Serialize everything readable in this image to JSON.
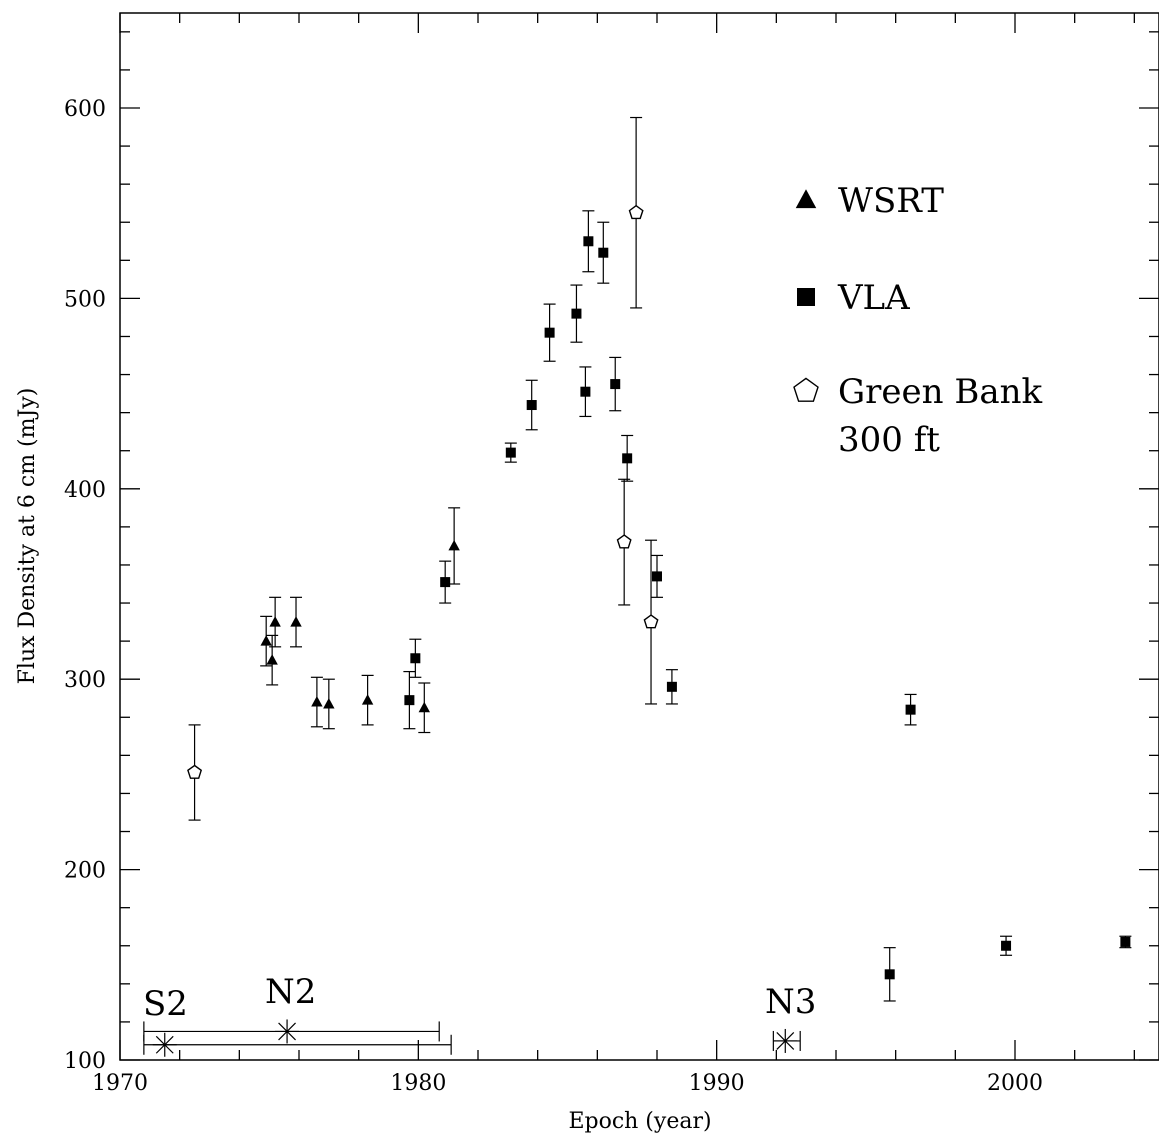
{
  "chart_data": {
    "type": "scatter",
    "xlabel": "Epoch (year)",
    "ylabel": "Flux Density at 6 cm (mJy)",
    "xlim": [
      1970,
      2004.8
    ],
    "ylim": [
      100,
      650
    ],
    "x_ticks": [
      1970,
      1980,
      1990,
      2000
    ],
    "y_ticks": [
      100,
      200,
      300,
      400,
      500,
      600
    ],
    "x_tick_labels": [
      "1970",
      "1980",
      "1990",
      "2000"
    ],
    "y_tick_labels": [
      "100",
      "200",
      "300",
      "400",
      "500",
      "600"
    ],
    "grid": false,
    "legend_position": "top-right",
    "series": [
      {
        "name": "WSRT",
        "marker": "filled-triangle",
        "points": [
          {
            "x": 1974.9,
            "y": 320,
            "err": 13
          },
          {
            "x": 1975.1,
            "y": 310,
            "err": 13
          },
          {
            "x": 1975.2,
            "y": 330,
            "err": 13
          },
          {
            "x": 1975.9,
            "y": 330,
            "err": 13
          },
          {
            "x": 1976.6,
            "y": 288,
            "err": 13
          },
          {
            "x": 1977.0,
            "y": 287,
            "err": 13
          },
          {
            "x": 1978.3,
            "y": 289,
            "err": 13
          },
          {
            "x": 1980.2,
            "y": 285,
            "err": 13
          },
          {
            "x": 1981.2,
            "y": 370,
            "err": 20
          }
        ]
      },
      {
        "name": "VLA",
        "marker": "filled-square",
        "points": [
          {
            "x": 1979.7,
            "y": 289,
            "err": 15
          },
          {
            "x": 1979.9,
            "y": 311,
            "err": 10
          },
          {
            "x": 1980.9,
            "y": 351,
            "err": 11
          },
          {
            "x": 1983.1,
            "y": 419,
            "err": 5
          },
          {
            "x": 1983.8,
            "y": 444,
            "err": 13
          },
          {
            "x": 1984.4,
            "y": 482,
            "err": 15
          },
          {
            "x": 1985.3,
            "y": 492,
            "err": 15
          },
          {
            "x": 1985.6,
            "y": 451,
            "err": 13
          },
          {
            "x": 1985.7,
            "y": 530,
            "err": 16
          },
          {
            "x": 1986.2,
            "y": 524,
            "err": 16
          },
          {
            "x": 1986.6,
            "y": 455,
            "err": 14
          },
          {
            "x": 1987.0,
            "y": 416,
            "err": 12
          },
          {
            "x": 1988.0,
            "y": 354,
            "err": 11
          },
          {
            "x": 1988.5,
            "y": 296,
            "err": 9
          },
          {
            "x": 1995.8,
            "y": 145,
            "err": 14
          },
          {
            "x": 1996.5,
            "y": 284,
            "err": 8
          },
          {
            "x": 1999.7,
            "y": 160,
            "err": 5
          },
          {
            "x": 2003.7,
            "y": 162,
            "err": 3
          }
        ]
      },
      {
        "name": "Green Bank\n300 ft",
        "marker": "open-pentagon",
        "points": [
          {
            "x": 1972.5,
            "y": 251,
            "err": 25
          },
          {
            "x": 1986.9,
            "y": 372,
            "err": 33
          },
          {
            "x": 1987.3,
            "y": 545,
            "err": 50
          },
          {
            "x": 1987.8,
            "y": 330,
            "err": 43
          }
        ]
      }
    ],
    "legend": [
      {
        "marker": "filled-triangle",
        "label_lines": [
          "WSRT"
        ]
      },
      {
        "marker": "filled-square",
        "label_lines": [
          "VLA"
        ]
      },
      {
        "marker": "open-pentagon",
        "label_lines": [
          "Green Bank",
          "300 ft"
        ]
      }
    ],
    "components": [
      {
        "label": "S2",
        "epoch": 1971.5,
        "y": 108,
        "range": [
          1970.8,
          1981.1
        ]
      },
      {
        "label": "N2",
        "epoch": 1975.6,
        "y": 115,
        "range": [
          1970.8,
          1980.7
        ]
      },
      {
        "label": "N3",
        "epoch": 1992.3,
        "y": 110,
        "range": [
          1991.9,
          1992.8
        ]
      }
    ]
  }
}
